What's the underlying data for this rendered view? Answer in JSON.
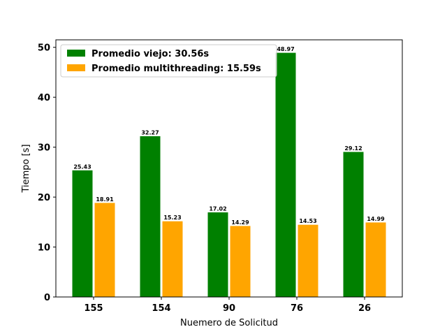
{
  "chart_data": {
    "type": "bar",
    "title": "",
    "xlabel": "Nuemero de Solicitud",
    "ylabel": "Tiempo [s]",
    "categories": [
      "155",
      "154",
      "90",
      "76",
      "26"
    ],
    "ylim": [
      0,
      51.5
    ],
    "yticks": [
      0,
      10,
      20,
      30,
      40,
      50
    ],
    "grid": false,
    "legend_position": "top-left",
    "series": [
      {
        "name": "Promedio viejo: 30.56s",
        "color": "#008000",
        "values": [
          25.43,
          32.27,
          17.02,
          48.97,
          29.12
        ],
        "labels": [
          "25.43",
          "32.27",
          "17.02",
          "48.97",
          "29.12"
        ]
      },
      {
        "name": "Promedio multithreading: 15.59s",
        "color": "#ffa500",
        "values": [
          18.91,
          15.23,
          14.29,
          14.53,
          14.99
        ],
        "labels": [
          "18.91",
          "15.23",
          "14.29",
          "14.53",
          "14.99"
        ]
      }
    ]
  }
}
